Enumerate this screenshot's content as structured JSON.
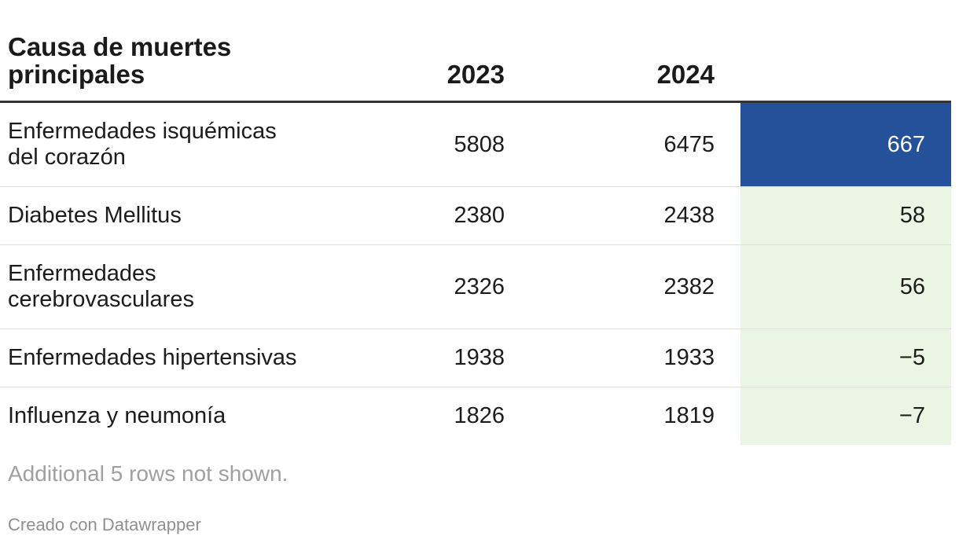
{
  "title": "Causa de muertes\nprincipales",
  "columns": {
    "year1": "2023",
    "year2": "2024",
    "diff": ""
  },
  "rows": [
    {
      "label": "Enfermedades isquémicas\ndel corazón",
      "v2023": "5808",
      "v2024": "6475",
      "diff": "667",
      "highlight": "blue"
    },
    {
      "label": "Diabetes Mellitus",
      "v2023": "2380",
      "v2024": "2438",
      "diff": "58",
      "highlight": "green"
    },
    {
      "label": "Enfermedades\ncerebrovasculares",
      "v2023": "2326",
      "v2024": "2382",
      "diff": "56",
      "highlight": "green"
    },
    {
      "label": "Enfermedades hipertensivas",
      "v2023": "1938",
      "v2024": "1933",
      "diff": "−5",
      "highlight": "green"
    },
    {
      "label": "Influenza y neumonía",
      "v2023": "1826",
      "v2024": "1819",
      "diff": "−7",
      "highlight": "green"
    }
  ],
  "footer": {
    "note": "Additional 5 rows not shown.",
    "attribution": "Creado con Datawrapper"
  },
  "colors": {
    "diff_highlight_bg": "#24519a",
    "diff_light_bg": "#eaf6e3",
    "diff_text_on_blue": "#ffffff",
    "header_rule": "#333333",
    "row_divider": "#dddddd",
    "body_text": "#1c1c1c",
    "muted_text": "#a0a0a0"
  },
  "chart_data": {
    "type": "table",
    "title": "Causa de muertes principales",
    "columns": [
      "Causa de muertes principales",
      "2023",
      "2024",
      ""
    ],
    "rows": [
      [
        "Enfermedades isquémicas del corazón",
        5808,
        6475,
        667
      ],
      [
        "Diabetes Mellitus",
        2380,
        2438,
        58
      ],
      [
        "Enfermedades cerebrovasculares",
        2326,
        2382,
        56
      ],
      [
        "Enfermedades hipertensivas",
        1938,
        1933,
        -5
      ],
      [
        "Influenza y neumonía",
        1826,
        1819,
        -7
      ]
    ],
    "last_column_is_difference_2024_minus_2023": true,
    "notes": "Additional 5 rows not shown.",
    "attribution": "Creado con Datawrapper"
  }
}
